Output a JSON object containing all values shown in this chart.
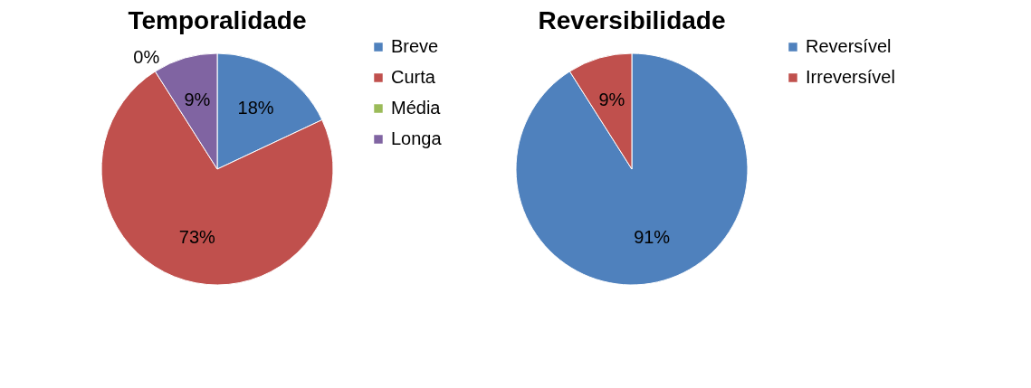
{
  "chart_data": [
    {
      "type": "pie",
      "title": "Temporalidade",
      "categories": [
        "Breve",
        "Curta",
        "Média",
        "Longa"
      ],
      "values": [
        18,
        73,
        0,
        9
      ],
      "value_labels": [
        "18%",
        "73%",
        "0%",
        "9%"
      ],
      "colors": [
        "#4f81bd",
        "#c0504d",
        "#9bbb59",
        "#8064a2"
      ],
      "legend": "right"
    },
    {
      "type": "pie",
      "title": "Reversibilidade",
      "categories": [
        "Reversível",
        "Irreversível"
      ],
      "values": [
        91,
        9
      ],
      "value_labels": [
        "91%",
        "9%"
      ],
      "colors": [
        "#4f81bd",
        "#c0504d"
      ],
      "legend": "right"
    }
  ]
}
